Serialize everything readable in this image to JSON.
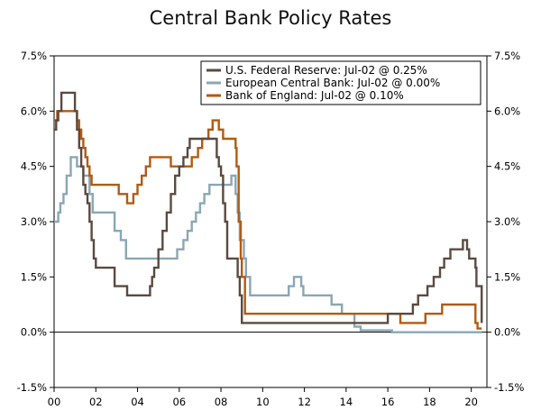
{
  "chart_data": {
    "type": "line",
    "title": "Central Bank Policy Rates",
    "xlabel": "",
    "ylabel": "",
    "xlim": [
      2000,
      2020.75
    ],
    "ylim": [
      -1.5,
      7.5
    ],
    "y_ticks": [
      7.5,
      6.0,
      4.5,
      3.0,
      1.5,
      0.0,
      -1.5
    ],
    "y_tick_labels": [
      "7.5%",
      "6.0%",
      "4.5%",
      "3.0%",
      "1.5%",
      "0.0%",
      "-1.5%"
    ],
    "x_ticks": [
      2000,
      2002,
      2004,
      2006,
      2008,
      2010,
      2012,
      2014,
      2016,
      2018,
      2020
    ],
    "x_tick_labels": [
      "00",
      "02",
      "04",
      "06",
      "08",
      "10",
      "12",
      "14",
      "16",
      "18",
      "20"
    ],
    "legend_position": "top-right",
    "series": [
      {
        "name": "U.S. Federal Reserve: Jul-02 @ 0.25%",
        "color": "#5a4a3f",
        "x": [
          2000.0,
          2000.1,
          2000.2,
          2000.35,
          2000.9,
          2001.0,
          2001.1,
          2001.2,
          2001.3,
          2001.4,
          2001.5,
          2001.6,
          2001.7,
          2001.8,
          2001.9,
          2002.0,
          2002.9,
          2003.5,
          2004.5,
          2004.6,
          2004.7,
          2004.8,
          2005.0,
          2005.2,
          2005.4,
          2005.6,
          2005.8,
          2006.0,
          2006.2,
          2006.4,
          2006.5,
          2007.7,
          2007.8,
          2007.9,
          2008.0,
          2008.1,
          2008.2,
          2008.3,
          2008.5,
          2008.8,
          2008.9,
          2009.0,
          2015.9,
          2016.0,
          2016.9,
          2017.2,
          2017.45,
          2017.9,
          2018.2,
          2018.5,
          2018.7,
          2019.0,
          2019.6,
          2019.7,
          2019.8,
          2019.9,
          2020.2,
          2020.25,
          2020.5
        ],
        "values": [
          5.5,
          5.75,
          6.0,
          6.5,
          6.5,
          6.0,
          5.5,
          5.0,
          4.5,
          4.0,
          3.75,
          3.5,
          3.0,
          2.5,
          2.0,
          1.75,
          1.25,
          1.0,
          1.0,
          1.25,
          1.5,
          1.75,
          2.25,
          2.75,
          3.25,
          3.75,
          4.25,
          4.5,
          4.75,
          5.0,
          5.25,
          5.25,
          4.75,
          4.5,
          4.25,
          3.5,
          3.0,
          2.0,
          2.0,
          1.5,
          1.0,
          0.25,
          0.25,
          0.5,
          0.5,
          0.75,
          1.0,
          1.25,
          1.5,
          1.75,
          2.0,
          2.25,
          2.5,
          2.5,
          2.25,
          2.0,
          1.75,
          1.25,
          0.25
        ]
      },
      {
        "name": "European Central Bank: Jul-02 @ 0.00%",
        "color": "#8aa7b4",
        "x": [
          2000.0,
          2000.2,
          2000.3,
          2000.45,
          2000.6,
          2000.8,
          2001.1,
          2001.4,
          2001.7,
          2001.85,
          2002.9,
          2003.2,
          2003.45,
          2005.9,
          2006.2,
          2006.4,
          2006.6,
          2006.8,
          2007.0,
          2007.2,
          2007.45,
          2008.5,
          2008.7,
          2008.8,
          2008.9,
          2009.1,
          2009.2,
          2009.4,
          2011.25,
          2011.5,
          2011.85,
          2011.95,
          2013.3,
          2013.8,
          2014.4,
          2014.7,
          2016.2,
          2020.5
        ],
        "values": [
          3.0,
          3.25,
          3.5,
          3.75,
          4.25,
          4.75,
          4.5,
          4.25,
          3.75,
          3.25,
          2.75,
          2.5,
          2.0,
          2.25,
          2.5,
          2.75,
          3.0,
          3.25,
          3.5,
          3.75,
          4.0,
          4.25,
          3.75,
          3.25,
          2.5,
          2.0,
          1.5,
          1.0,
          1.25,
          1.5,
          1.25,
          1.0,
          0.75,
          0.5,
          0.15,
          0.05,
          0.0,
          0.0
        ]
      },
      {
        "name": "Bank of England: Jul-02 @ 0.10%",
        "color": "#b35a10",
        "x": [
          2000.0,
          2000.15,
          2001.1,
          2001.2,
          2001.3,
          2001.4,
          2001.5,
          2001.6,
          2001.7,
          2001.8,
          2003.1,
          2003.5,
          2003.8,
          2004.0,
          2004.2,
          2004.4,
          2004.6,
          2005.6,
          2006.6,
          2006.9,
          2007.1,
          2007.4,
          2007.6,
          2007.9,
          2008.1,
          2008.7,
          2008.75,
          2008.85,
          2008.95,
          2009.0,
          2009.15,
          2016.6,
          2017.8,
          2018.6,
          2020.2,
          2020.3,
          2020.5
        ],
        "values": [
          5.75,
          6.0,
          5.75,
          5.5,
          5.25,
          5.0,
          4.75,
          4.5,
          4.25,
          4.0,
          3.75,
          3.5,
          3.75,
          4.0,
          4.25,
          4.5,
          4.75,
          4.5,
          4.75,
          5.0,
          5.25,
          5.5,
          5.75,
          5.5,
          5.25,
          5.0,
          4.5,
          3.0,
          2.0,
          1.5,
          0.5,
          0.25,
          0.5,
          0.75,
          0.25,
          0.1,
          0.1
        ]
      }
    ]
  }
}
